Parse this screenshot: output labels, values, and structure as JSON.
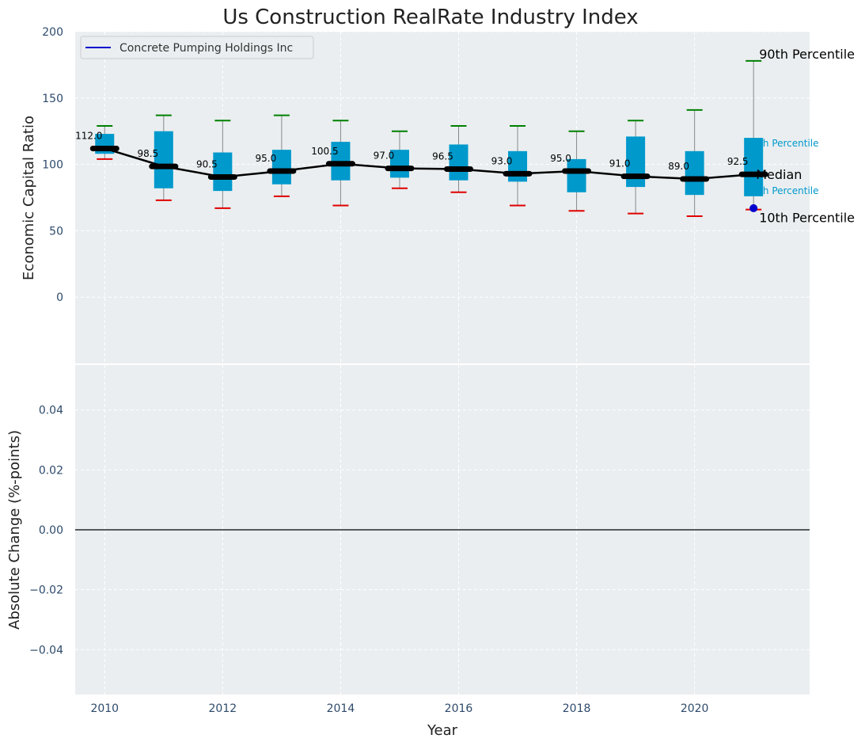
{
  "chart_data": [
    {
      "type": "box",
      "title": "Us Construction RealRate Industry Index",
      "ylabel": "Economic Capital Ratio",
      "xlabel": "",
      "ylim": [
        -50,
        200
      ],
      "xlim": [
        2009.5,
        2021.95
      ],
      "yticks": [
        0,
        50,
        100,
        150,
        200
      ],
      "grid": true,
      "legend": {
        "position": "top-left",
        "entries": [
          "Concrete Pumping Holdings Inc"
        ]
      },
      "categories": [
        2010,
        2011,
        2012,
        2013,
        2014,
        2015,
        2016,
        2017,
        2018,
        2019,
        2020,
        2021
      ],
      "series": [
        {
          "name": "box",
          "p10": [
            104,
            73,
            67,
            76,
            69,
            82,
            79,
            69,
            65,
            63,
            61,
            66
          ],
          "p25": [
            108,
            82,
            80,
            85,
            88,
            90,
            88,
            87,
            79,
            83,
            77,
            76
          ],
          "median": [
            112,
            98.5,
            90.5,
            95,
            100.5,
            97,
            96.5,
            93,
            95,
            91,
            89,
            92.5
          ],
          "p75": [
            123,
            125,
            109,
            111,
            117,
            111,
            115,
            110,
            104,
            121,
            110,
            120
          ],
          "p90": [
            129,
            137,
            133,
            137,
            133,
            125,
            129,
            129,
            125,
            133,
            141,
            178
          ]
        },
        {
          "name": "Concrete Pumping Holdings Inc",
          "x": [
            2021
          ],
          "values": [
            67
          ]
        }
      ],
      "median_labels": [
        "112.0",
        "98.5",
        "90.5",
        "95.0",
        "100.5",
        "97.0",
        "96.5",
        "93.0",
        "95.0",
        "91.0",
        "89.0",
        "92.5"
      ],
      "annotations": {
        "p90": "90th Percentile",
        "p75": "th Percentile",
        "median": "Median",
        "p25": "th Percentile",
        "p10": "10th Percentile"
      },
      "colors": {
        "box": "#0099cc",
        "whisker": "#888888",
        "p90_cap": "#008000",
        "p10_cap": "#e00000",
        "median": "#000000",
        "company": "#0000cc",
        "plot_bg": "#eaeef0",
        "text": "#2e4a6b"
      }
    },
    {
      "type": "line",
      "ylabel": "Absolute Change (%-points)",
      "xlabel": "Year",
      "ylim": [
        -0.055,
        0.055
      ],
      "xlim": [
        2009.5,
        2021.95
      ],
      "yticks": [
        "0.04",
        "0.02",
        "0.00",
        "−0.02",
        "−0.04"
      ],
      "ytick_values": [
        0.04,
        0.02,
        0,
        -0.02,
        -0.04
      ],
      "xticks": [
        "2010",
        "2012",
        "2014",
        "2016",
        "2018",
        "2020"
      ],
      "xtick_values": [
        2010,
        2012,
        2014,
        2016,
        2018,
        2020
      ],
      "grid": true,
      "reference_line": 0,
      "series": []
    }
  ]
}
